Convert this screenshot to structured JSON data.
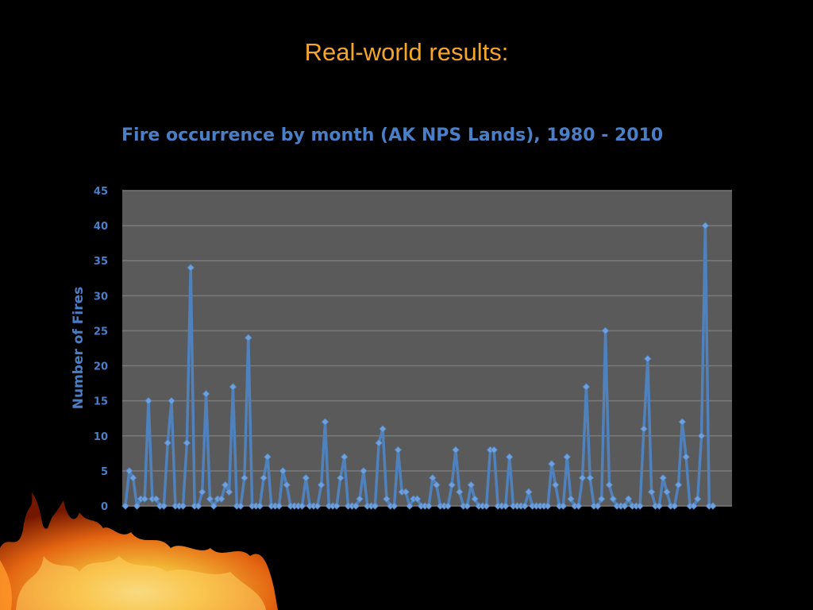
{
  "slide": {
    "title": "Real-world results:"
  },
  "colors": {
    "background": "#000000",
    "slide_title": "#f5a52a",
    "chart_text": "#4a7fc8",
    "plot_area": "#5a5a5a",
    "gridline": "#7a7a7a",
    "series": "#4f81bd"
  },
  "chart_data": {
    "type": "line",
    "title": "Fire occurrence by month (AK NPS Lands), 1980 - 2010",
    "xlabel": "",
    "ylabel": "Number of Fires",
    "ylim": [
      0,
      45
    ],
    "yticks": [
      0,
      5,
      10,
      15,
      20,
      25,
      30,
      35,
      40,
      45
    ],
    "grid": true,
    "legend": "none",
    "series": [
      {
        "values": [
          0,
          5,
          4,
          0,
          1,
          1,
          15,
          1,
          1,
          0,
          0,
          9,
          15,
          0,
          0,
          0,
          9,
          34,
          0,
          0,
          2,
          16,
          1,
          0,
          1,
          1,
          3,
          2,
          17,
          0,
          0,
          4,
          24,
          0,
          0,
          0,
          4,
          7,
          0,
          0,
          0,
          5,
          3,
          0,
          0,
          0,
          0,
          4,
          0,
          0,
          0,
          3,
          12,
          0,
          0,
          0,
          4,
          7,
          0,
          0,
          0,
          1,
          5,
          0,
          0,
          0,
          9,
          11,
          1,
          0,
          0,
          8,
          2,
          2,
          0,
          1,
          1,
          0,
          0,
          0,
          4,
          3,
          0,
          0,
          0,
          3,
          8,
          2,
          0,
          0,
          3,
          1,
          0,
          0,
          0,
          8,
          8,
          0,
          0,
          0,
          7,
          0,
          0,
          0,
          0,
          2,
          0,
          0,
          0,
          0,
          0,
          6,
          3,
          0,
          0,
          7,
          1,
          0,
          0,
          4,
          17,
          4,
          0,
          0,
          1,
          25,
          3,
          1,
          0,
          0,
          0,
          1,
          0,
          0,
          0,
          11,
          21,
          2,
          0,
          0,
          4,
          2,
          0,
          0,
          3,
          12,
          7,
          0,
          0,
          1,
          10,
          40,
          0,
          0
        ]
      }
    ]
  }
}
